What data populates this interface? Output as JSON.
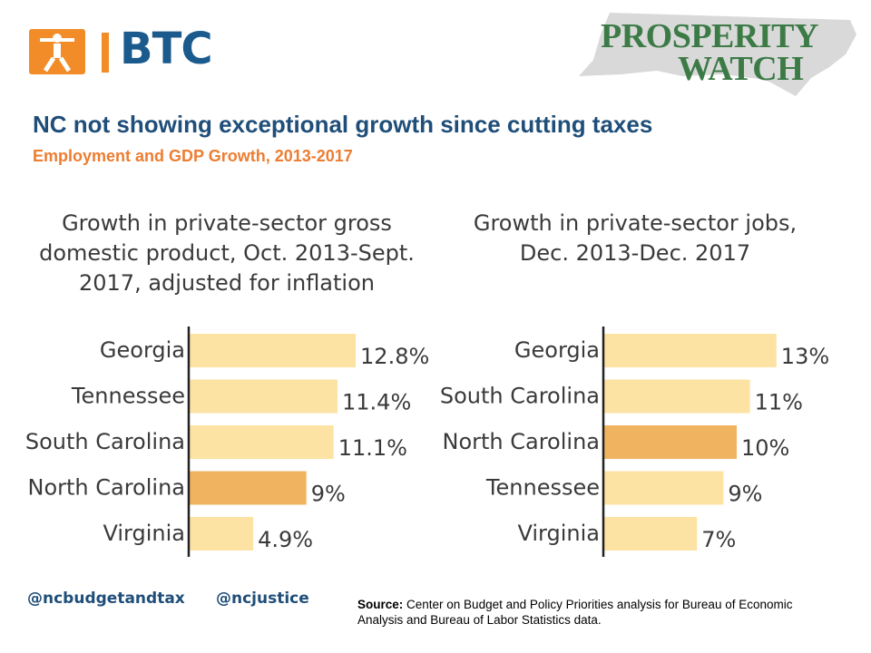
{
  "header": {
    "btc_logo_text": "BTC",
    "pw_logo_line1": "PROSPERITY",
    "pw_logo_line2": "WATCH",
    "title": "NC not showing exceptional growth since cutting taxes",
    "subtitle": "Employment and GDP Growth, 2013-2017"
  },
  "colors": {
    "bar": "#fde3a3",
    "highlight": "#f0b461",
    "axis": "#222222",
    "title": "#1f4e79",
    "subtitle": "#ed7d31"
  },
  "chart_data": [
    {
      "type": "bar",
      "orientation": "horizontal",
      "title": "Growth in private-sector gross domestic product, Oct. 2013-Sept. 2017, adjusted for inflation",
      "title_lines": [
        "Growth in private-sector gross",
        "domestic product, Oct. 2013-Sept.",
        "2017, adjusted for inflation"
      ],
      "categories": [
        "Georgia",
        "Tennessee",
        "South Carolina",
        "North Carolina",
        "Virginia"
      ],
      "values": [
        12.8,
        11.4,
        11.1,
        9,
        4.9
      ],
      "value_labels": [
        "12.8%",
        "11.4%",
        "11.1%",
        "9%",
        "4.9%"
      ],
      "highlight": "North Carolina",
      "xlim": [
        0,
        14
      ]
    },
    {
      "type": "bar",
      "orientation": "horizontal",
      "title": "Growth in private-sector jobs, Dec. 2013-Dec. 2017",
      "title_lines": [
        "Growth in private-sector jobs,",
        "Dec. 2013-Dec. 2017"
      ],
      "categories": [
        "Georgia",
        "South Carolina",
        "North Carolina",
        "Tennessee",
        "Virginia"
      ],
      "values": [
        13,
        11,
        10,
        9,
        7
      ],
      "value_labels": [
        "13%",
        "11%",
        "10%",
        "9%",
        "7%"
      ],
      "highlight": "North Carolina",
      "xlim": [
        0,
        14
      ]
    }
  ],
  "footer": {
    "handle1": "@ncbudgetandtax",
    "handle2": "@ncjustice",
    "source_label": "Source:",
    "source_text": " Center on Budget and Policy Priorities analysis for Bureau of Economic Analysis and Bureau of Labor Statistics data."
  }
}
